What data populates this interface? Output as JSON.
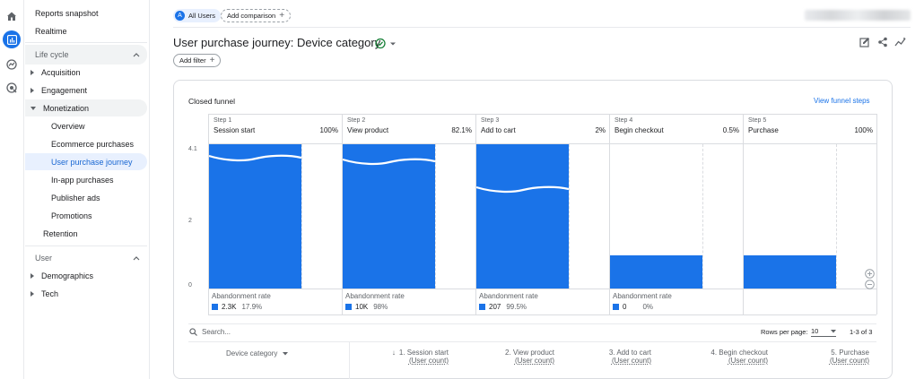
{
  "rail": {
    "icons": [
      "home-icon",
      "reports-icon",
      "explore-icon",
      "advertising-icon"
    ]
  },
  "nav": {
    "reports_snapshot": "Reports snapshot",
    "realtime": "Realtime",
    "life_cycle": "Life cycle",
    "acquisition": "Acquisition",
    "engagement": "Engagement",
    "monetization": "Monetization",
    "overview": "Overview",
    "ecommerce": "Ecommerce purchases",
    "user_purchase_journey": "User purchase journey",
    "in_app": "In-app purchases",
    "publisher_ads": "Publisher ads",
    "promotions": "Promotions",
    "retention": "Retention",
    "user": "User",
    "demographics": "Demographics",
    "tech": "Tech"
  },
  "header": {
    "segment_badge": "A",
    "segment_label": "All Users",
    "add_comparison": "Add comparison",
    "title": "User purchase journey: Device category",
    "add_filter": "Add filter"
  },
  "funnel": {
    "card_title": "Closed funnel",
    "view_steps": "View funnel steps",
    "steps": [
      {
        "num": "Step 1",
        "name": "Session start",
        "pct": "100%",
        "ab_label": "Abandonment rate",
        "ab_count": "2.3K",
        "ab_pct": "17.9%"
      },
      {
        "num": "Step 2",
        "name": "View product",
        "pct": "82.1%",
        "ab_label": "Abandonment rate",
        "ab_count": "10K",
        "ab_pct": "98%"
      },
      {
        "num": "Step 3",
        "name": "Add to cart",
        "pct": "2%",
        "ab_label": "Abandonment rate",
        "ab_count": "207",
        "ab_pct": "99.5%"
      },
      {
        "num": "Step 4",
        "name": "Begin checkout",
        "pct": "0.5%",
        "ab_label": "Abandonment rate",
        "ab_count": "0",
        "ab_pct": "0%"
      },
      {
        "num": "Step 5",
        "name": "Purchase",
        "pct": "100%",
        "ab_label": "",
        "ab_count": "",
        "ab_pct": ""
      }
    ],
    "y_ticks": [
      "4.1",
      "2",
      "0"
    ]
  },
  "chart_data": {
    "type": "bar",
    "categories": [
      "Session start",
      "View product",
      "Add to cart",
      "Begin checkout",
      "Purchase"
    ],
    "values": [
      4.1,
      4.1,
      4.1,
      0.95,
      0.95
    ],
    "wave_levels": [
      3.7,
      3.6,
      2.8
    ],
    "ylim": [
      0,
      4.1
    ],
    "y_ticks": [
      "4.1",
      "2",
      "0"
    ]
  },
  "table": {
    "search_placeholder": "Search...",
    "rows_per_page_label": "Rows per page:",
    "rows_per_page": "10",
    "range": "1-3 of 3",
    "device_category": "Device category",
    "columns": [
      {
        "title": "1. Session start",
        "sub": "(User count)"
      },
      {
        "title": "2. View product",
        "sub": "(User count)"
      },
      {
        "title": "3. Add to cart",
        "sub": "(User count)"
      },
      {
        "title": "4. Begin checkout",
        "sub": "(User count)"
      },
      {
        "title": "5. Purchase",
        "sub": "(User count)"
      }
    ]
  },
  "colors": {
    "bar": "#1a73e8",
    "accent": "#1a73e8",
    "check": "#188038"
  }
}
